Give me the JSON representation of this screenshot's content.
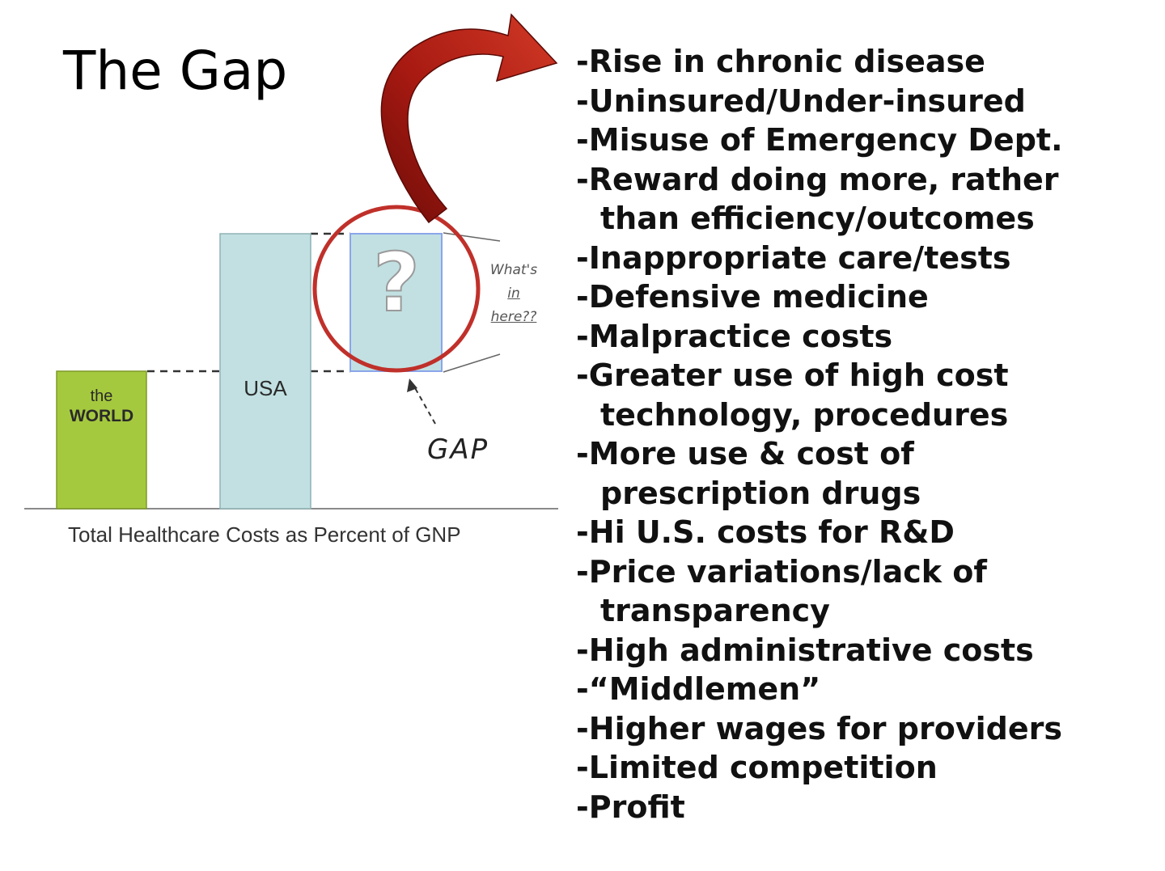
{
  "title": "The Gap",
  "chart_data": {
    "type": "bar",
    "categories": [
      "the WORLD",
      "USA",
      "GAP"
    ],
    "bar_labels": {
      "world_line1": "the",
      "world_line2": "WORLD",
      "usa": "USA"
    },
    "caption": "Total Healthcare Costs as Percent of GNP",
    "gap_label": "GAP",
    "gap_symbol": "?",
    "annotation_lines": [
      "What's",
      "in",
      "here??"
    ],
    "relative_heights": {
      "world": 0.5,
      "usa": 1.0,
      "gap": 0.5
    },
    "colors": {
      "world": "#a5c93e",
      "usa": "#c2e0e2",
      "gap_fill": "#c2e0e2",
      "gap_border": "#8aa6ea",
      "circle": "#c0302a",
      "arrow": "#b82018"
    }
  },
  "causes": [
    {
      "line1": "-Rise in chronic disease"
    },
    {
      "line1": "-Uninsured/Under-insured"
    },
    {
      "line1": "-Misuse of Emergency Dept."
    },
    {
      "line1": "-Reward doing more, rather",
      "line2": "than efficiency/outcomes"
    },
    {
      "line1": "-Inappropriate care/tests"
    },
    {
      "line1": "-Defensive medicine"
    },
    {
      "line1": "-Malpractice costs"
    },
    {
      "line1": "-Greater use of high cost",
      "line2": "technology, procedures"
    },
    {
      "line1": "-More use & cost of",
      "line2": "prescription drugs"
    },
    {
      "line1": "-Hi U.S. costs for R&D"
    },
    {
      "line1": "-Price variations/lack of",
      "line2": "transparency"
    },
    {
      "line1": "-High administrative costs"
    },
    {
      "line1": "-“Middlemen”"
    },
    {
      "line1": "-Higher wages for providers"
    },
    {
      "line1": "-Limited competition"
    },
    {
      "line1": "-Profit"
    }
  ]
}
